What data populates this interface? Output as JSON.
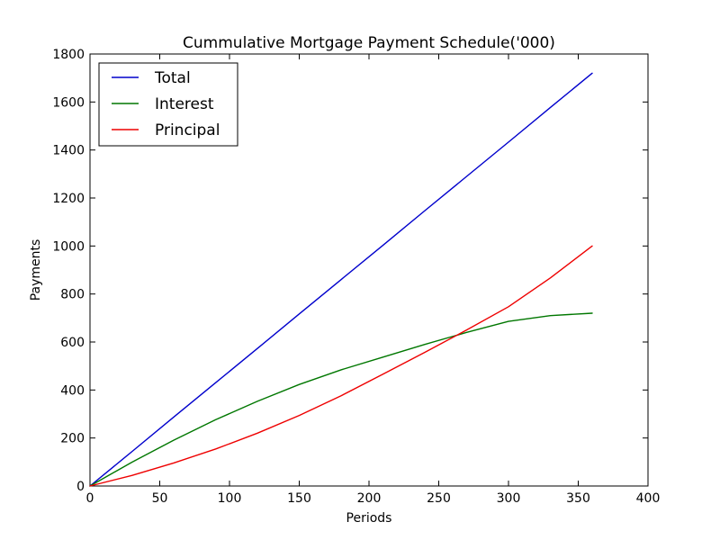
{
  "chart_data": {
    "type": "line",
    "title": "Cummulative Mortgage Payment Schedule('000)",
    "xlabel": "Periods",
    "ylabel": "Payments",
    "xlim": [
      0,
      400
    ],
    "ylim": [
      0,
      1800
    ],
    "xticks": [
      "0",
      "50",
      "100",
      "150",
      "200",
      "250",
      "300",
      "350",
      "400"
    ],
    "yticks": [
      "0",
      "200",
      "400",
      "600",
      "800",
      "1000",
      "1200",
      "1400",
      "1600",
      "1800"
    ],
    "grid": false,
    "legend_position": "top-left",
    "x": [
      0,
      30,
      60,
      90,
      120,
      150,
      180,
      210,
      240,
      270,
      300,
      330,
      360
    ],
    "series": [
      {
        "name": "Total",
        "color": "#0000cc",
        "values": [
          0,
          143,
          287,
          430,
          573,
          717,
          860,
          1003,
          1147,
          1290,
          1433,
          1577,
          1720
        ]
      },
      {
        "name": "Interest",
        "color": "#007700",
        "values": [
          0,
          99,
          191,
          276,
          353,
          423,
          484,
          537,
          590,
          640,
          686,
          710,
          720
        ]
      },
      {
        "name": "Principal",
        "color": "#ee0000",
        "values": [
          0,
          44,
          96,
          154,
          220,
          294,
          376,
          466,
          557,
          650,
          747,
          867,
          1000
        ]
      }
    ]
  }
}
